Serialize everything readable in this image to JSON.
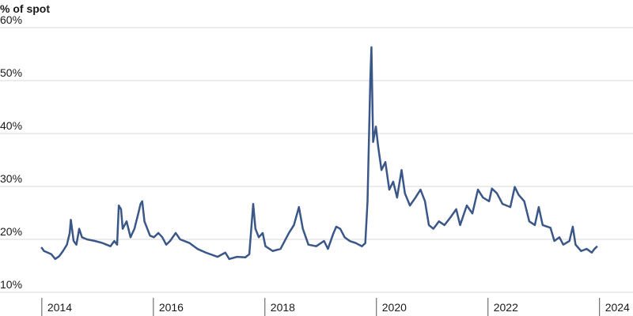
{
  "chart_data": {
    "type": "line",
    "title": "% of spot",
    "x": [
      2013.99,
      2014.04,
      2014.17,
      2014.24,
      2014.31,
      2014.38,
      2014.45,
      2014.5,
      2014.52,
      2014.57,
      2014.62,
      2014.67,
      2014.72,
      2014.81,
      2014.95,
      2015.09,
      2015.23,
      2015.3,
      2015.35,
      2015.38,
      2015.42,
      2015.45,
      2015.52,
      2015.59,
      2015.66,
      2015.73,
      2015.77,
      2015.8,
      2015.84,
      2015.94,
      2016.01,
      2016.09,
      2016.16,
      2016.23,
      2016.3,
      2016.4,
      2016.48,
      2016.65,
      2016.79,
      2016.94,
      2017.15,
      2017.29,
      2017.36,
      2017.5,
      2017.65,
      2017.72,
      2017.79,
      2017.83,
      2017.89,
      2017.96,
      2018.01,
      2018.14,
      2018.28,
      2018.43,
      2018.52,
      2018.61,
      2018.68,
      2018.78,
      2018.92,
      2019.06,
      2019.13,
      2019.23,
      2019.28,
      2019.35,
      2019.43,
      2019.52,
      2019.63,
      2019.74,
      2019.8,
      2019.84,
      2019.89,
      2019.91,
      2019.94,
      2019.99,
      2020.03,
      2020.09,
      2020.16,
      2020.23,
      2020.3,
      2020.37,
      2020.45,
      2020.51,
      2020.6,
      2020.7,
      2020.79,
      2020.87,
      2020.94,
      2021.02,
      2021.12,
      2021.22,
      2021.33,
      2021.43,
      2021.5,
      2021.62,
      2021.72,
      2021.82,
      2021.91,
      2022.02,
      2022.07,
      2022.16,
      2022.26,
      2022.4,
      2022.48,
      2022.55,
      2022.65,
      2022.74,
      2022.84,
      2022.91,
      2022.98,
      2023.12,
      2023.19,
      2023.28,
      2023.35,
      2023.46,
      2023.52,
      2023.57,
      2023.67,
      2023.77,
      2023.86,
      2023.91,
      2023.96
    ],
    "series": [
      {
        "name": "% of spot",
        "color": "#3a5788",
        "values": [
          18.5,
          17.8,
          17.2,
          16.3,
          16.8,
          17.8,
          19.0,
          21.2,
          23.7,
          19.7,
          19.0,
          22.0,
          20.4,
          20.0,
          19.7,
          19.3,
          18.7,
          19.7,
          19.0,
          26.4,
          25.7,
          22.0,
          23.4,
          20.4,
          22.0,
          24.9,
          26.7,
          27.2,
          23.4,
          20.7,
          20.4,
          21.2,
          20.4,
          19.0,
          19.7,
          21.2,
          20.0,
          19.3,
          18.2,
          17.5,
          16.7,
          17.5,
          16.3,
          16.7,
          16.6,
          17.2,
          26.7,
          22.0,
          20.4,
          21.2,
          18.7,
          17.8,
          18.2,
          21.2,
          22.7,
          26.1,
          22.0,
          19.0,
          18.7,
          19.7,
          18.2,
          21.2,
          22.4,
          22.0,
          20.4,
          19.7,
          19.3,
          18.7,
          19.3,
          27.2,
          50.3,
          56.3,
          38.4,
          41.3,
          37.6,
          33.1,
          34.6,
          29.4,
          30.9,
          27.9,
          33.1,
          28.7,
          26.4,
          27.9,
          29.4,
          27.2,
          22.7,
          22.0,
          23.4,
          22.7,
          24.2,
          25.7,
          22.7,
          26.4,
          24.9,
          29.4,
          27.9,
          27.2,
          29.6,
          28.7,
          26.7,
          26.1,
          29.9,
          28.4,
          27.2,
          23.4,
          22.7,
          26.1,
          22.7,
          22.2,
          19.7,
          20.4,
          19.0,
          19.7,
          22.4,
          19.0,
          17.8,
          18.2,
          17.5,
          18.2,
          18.7
        ]
      }
    ],
    "xlim": [
      2013.25,
      2024.6
    ],
    "xticks": [
      2014,
      2016,
      2018,
      2020,
      2022,
      2024
    ],
    "ylim": [
      10,
      60
    ],
    "yticks": [
      {
        "value": 10,
        "label": "10%"
      },
      {
        "value": 20,
        "label": "20%"
      },
      {
        "value": 30,
        "label": "30%"
      },
      {
        "value": 40,
        "label": "40%"
      },
      {
        "value": 50,
        "label": "50%"
      },
      {
        "value": 60,
        "label": "60%"
      }
    ],
    "grid": true
  }
}
